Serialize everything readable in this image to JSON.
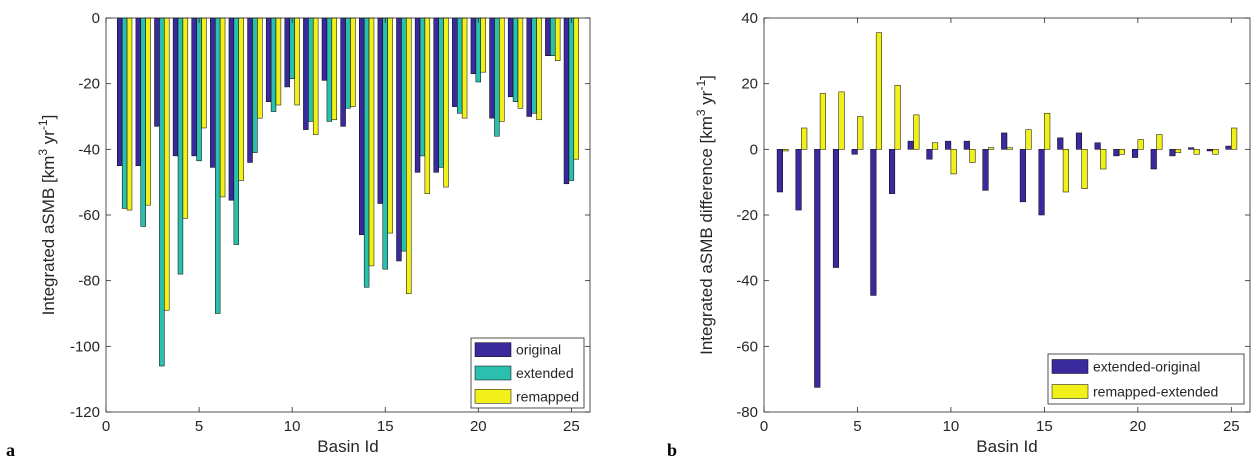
{
  "panel_letters": [
    "a",
    "b"
  ],
  "chart_data": [
    {
      "type": "bar",
      "xlabel": "Basin Id",
      "ylabel": "Integrated aSMB [km³ yr⁻¹]",
      "xlim": [
        0,
        26
      ],
      "ylim": [
        -120,
        0
      ],
      "xticks": [
        0,
        5,
        10,
        15,
        20,
        25
      ],
      "yticks": [
        -120,
        -100,
        -80,
        -60,
        -40,
        -20,
        0
      ],
      "legend_position": "bottom-right",
      "grid": false,
      "categories": [
        1,
        2,
        3,
        4,
        5,
        6,
        7,
        8,
        9,
        10,
        11,
        12,
        13,
        14,
        15,
        16,
        17,
        18,
        19,
        20,
        21,
        22,
        23,
        24,
        25
      ],
      "series": [
        {
          "name": "original",
          "color": "#3b2a9e",
          "values": [
            -45,
            -45,
            -33,
            -42,
            -42,
            -45.5,
            -55.5,
            -44,
            -25.5,
            -21,
            -34,
            -19,
            -33,
            -66,
            -56.5,
            -74,
            -47,
            -47,
            -27,
            -17,
            -30.5,
            -24,
            -30,
            -11.5,
            -50.5
          ]
        },
        {
          "name": "extended",
          "color": "#2bbfae",
          "values": [
            -58,
            -63.5,
            -106,
            -78,
            -43.5,
            -90,
            -69,
            -41,
            -28.5,
            -18.5,
            -31.5,
            -31.5,
            -27.5,
            -82,
            -76.5,
            -71,
            -42,
            -45.5,
            -29,
            -19.5,
            -36,
            -25.5,
            -29,
            -11.5,
            -49.5
          ]
        },
        {
          "name": "remapped",
          "color": "#f2f01a",
          "values": [
            -58.5,
            -57,
            -89,
            -61,
            -33.5,
            -54.5,
            -49.5,
            -30.5,
            -26.5,
            -26.5,
            -35.5,
            -31,
            -27,
            -75.5,
            -65.5,
            -84,
            -53.5,
            -51.5,
            -30.5,
            -16.5,
            -31.5,
            -27.5,
            -31,
            -13,
            -43
          ]
        }
      ]
    },
    {
      "type": "bar",
      "xlabel": "Basin Id",
      "ylabel": "Integrated aSMB difference [km³ yr⁻¹]",
      "xlim": [
        0,
        26
      ],
      "ylim": [
        -80,
        40
      ],
      "xticks": [
        0,
        5,
        10,
        15,
        20,
        25
      ],
      "yticks": [
        -80,
        -60,
        -40,
        -20,
        0,
        20,
        40
      ],
      "legend_position": "bottom-right",
      "grid": false,
      "categories": [
        1,
        2,
        3,
        4,
        5,
        6,
        7,
        8,
        9,
        10,
        11,
        12,
        13,
        14,
        15,
        16,
        17,
        18,
        19,
        20,
        21,
        22,
        23,
        24,
        25
      ],
      "series": [
        {
          "name": "extended-original",
          "color": "#3b2a9e",
          "values": [
            -13,
            -18.5,
            -72.5,
            -36,
            -1.5,
            -44.5,
            -13.5,
            2.5,
            -3,
            2.5,
            2.5,
            -12.5,
            5,
            -16,
            -20,
            3.5,
            5,
            2,
            -2,
            -2.5,
            -6,
            -2,
            0.5,
            -0.5,
            1
          ]
        },
        {
          "name": "remapped-extended",
          "color": "#f2f01a",
          "values": [
            -0.5,
            6.5,
            17,
            17.5,
            10,
            35.5,
            19.5,
            10.5,
            2,
            -7.5,
            -4,
            0.5,
            0.5,
            6,
            11,
            -13,
            -12,
            -6,
            -1.5,
            3,
            4.5,
            -1,
            -1.5,
            -1.5,
            6.5
          ]
        }
      ]
    }
  ]
}
